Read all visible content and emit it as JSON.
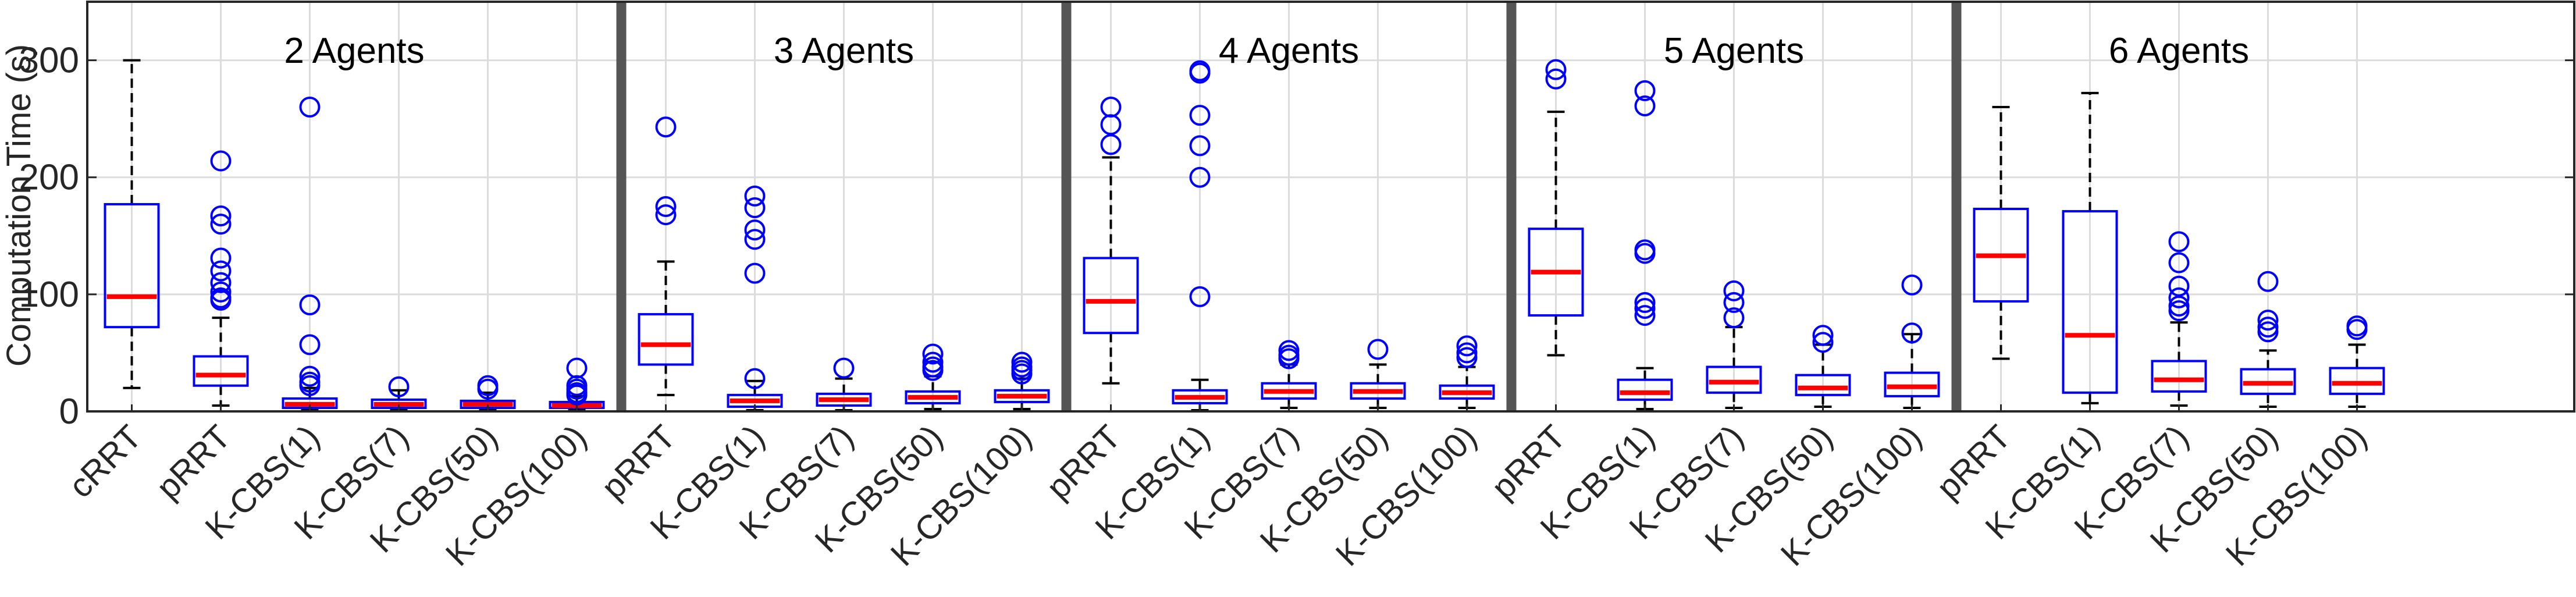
{
  "chart_data": {
    "type": "boxplot",
    "ylabel": "Computation Time (s)",
    "ylim": [
      0,
      350
    ],
    "yticks": [
      0,
      100,
      200,
      300
    ],
    "grid": true,
    "colors": {
      "box": "#0000ff",
      "median": "#ff0000",
      "whisker": "#000000",
      "outlier": "#0000ff",
      "axis": "#262626",
      "divider": "#555555"
    },
    "panels": [
      {
        "title": "2 Agents",
        "groups": [
          {
            "label": "cRRT",
            "q1": 72,
            "median": 98,
            "q3": 177,
            "wlo": 20,
            "whi": 300,
            "outliers": []
          },
          {
            "label": "pRRT",
            "q1": 22,
            "median": 31,
            "q3": 47,
            "wlo": 5,
            "whi": 80,
            "outliers": [
              214,
              167,
              160,
              131,
              120,
              110,
              102,
              97,
              95
            ]
          },
          {
            "label": "K-CBS(1)",
            "q1": 3,
            "median": 6,
            "q3": 11,
            "wlo": 1,
            "whi": 20,
            "outliers": [
              260,
              91,
              57,
              30,
              25,
              22
            ]
          },
          {
            "label": "K-CBS(7)",
            "q1": 3,
            "median": 6,
            "q3": 10,
            "wlo": 1,
            "whi": 18,
            "outliers": [
              21
            ]
          },
          {
            "label": "K-CBS(50)",
            "q1": 3,
            "median": 6,
            "q3": 9,
            "wlo": 1,
            "whi": 16,
            "outliers": [
              22,
              19
            ]
          },
          {
            "label": "K-CBS(100)",
            "q1": 3,
            "median": 5,
            "q3": 8,
            "wlo": 1,
            "whi": 13,
            "outliers": [
              37,
              22,
              19,
              16,
              14
            ]
          }
        ]
      },
      {
        "title": "3 Agents",
        "groups": [
          {
            "label": "pRRT",
            "q1": 40,
            "median": 57,
            "q3": 83,
            "wlo": 14,
            "whi": 128,
            "outliers": [
              243,
              175,
              168
            ]
          },
          {
            "label": "K-CBS(1)",
            "q1": 4,
            "median": 9,
            "q3": 14,
            "wlo": 1,
            "whi": 26,
            "outliers": [
              184,
              174,
              155,
              147,
              118,
              28
            ]
          },
          {
            "label": "K-CBS(7)",
            "q1": 5,
            "median": 10,
            "q3": 15,
            "wlo": 1,
            "whi": 28,
            "outliers": [
              37
            ]
          },
          {
            "label": "K-CBS(50)",
            "q1": 7,
            "median": 12,
            "q3": 17,
            "wlo": 2,
            "whi": 30,
            "outliers": [
              49,
              42,
              38,
              35
            ]
          },
          {
            "label": "K-CBS(100)",
            "q1": 8,
            "median": 13,
            "q3": 18,
            "wlo": 2,
            "whi": 28,
            "outliers": [
              42,
              38,
              35,
              32
            ]
          }
        ]
      },
      {
        "title": "4 Agents",
        "groups": [
          {
            "label": "pRRT",
            "q1": 67,
            "median": 94,
            "q3": 131,
            "wlo": 24,
            "whi": 217,
            "outliers": [
              260,
              245,
              228
            ]
          },
          {
            "label": "K-CBS(1)",
            "q1": 7,
            "median": 12,
            "q3": 18,
            "wlo": 1,
            "whi": 27,
            "outliers": [
              291,
              289,
              253,
              227,
              200,
              98
            ]
          },
          {
            "label": "K-CBS(7)",
            "q1": 11,
            "median": 17,
            "q3": 24,
            "wlo": 3,
            "whi": 40,
            "outliers": [
              52,
              48,
              45
            ]
          },
          {
            "label": "K-CBS(50)",
            "q1": 11,
            "median": 17,
            "q3": 24,
            "wlo": 3,
            "whi": 40,
            "outliers": [
              53
            ]
          },
          {
            "label": "K-CBS(100)",
            "q1": 11,
            "median": 16,
            "q3": 22,
            "wlo": 3,
            "whi": 38,
            "outliers": [
              56,
              50,
              46
            ]
          }
        ]
      },
      {
        "title": "5 Agents",
        "groups": [
          {
            "label": "pRRT",
            "q1": 82,
            "median": 119,
            "q3": 156,
            "wlo": 48,
            "whi": 256,
            "outliers": [
              292,
              284
            ]
          },
          {
            "label": "K-CBS(1)",
            "q1": 10,
            "median": 16,
            "q3": 27,
            "wlo": 2,
            "whi": 37,
            "outliers": [
              274,
              261,
              138,
              135,
              93,
              88,
              82
            ]
          },
          {
            "label": "K-CBS(7)",
            "q1": 16,
            "median": 25,
            "q3": 38,
            "wlo": 3,
            "whi": 72,
            "outliers": [
              103,
              93,
              80
            ]
          },
          {
            "label": "K-CBS(50)",
            "q1": 14,
            "median": 20,
            "q3": 31,
            "wlo": 4,
            "whi": 57,
            "outliers": [
              65,
              59
            ]
          },
          {
            "label": "K-CBS(100)",
            "q1": 13,
            "median": 21,
            "q3": 33,
            "wlo": 3,
            "whi": 66,
            "outliers": [
              108,
              67
            ]
          }
        ]
      },
      {
        "title": "6 Agents",
        "groups": [
          {
            "label": "pRRT",
            "q1": 94,
            "median": 133,
            "q3": 173,
            "wlo": 45,
            "whi": 260,
            "outliers": []
          },
          {
            "label": "K-CBS(1)",
            "q1": 16,
            "median": 65,
            "q3": 171,
            "wlo": 7,
            "whi": 272,
            "outliers": []
          },
          {
            "label": "K-CBS(7)",
            "q1": 17,
            "median": 27,
            "q3": 43,
            "wlo": 5,
            "whi": 76,
            "outliers": [
              145,
              127,
              107,
              97,
              90,
              86
            ]
          },
          {
            "label": "K-CBS(50)",
            "q1": 15,
            "median": 24,
            "q3": 36,
            "wlo": 4,
            "whi": 52,
            "outliers": [
              111,
              78,
              72,
              68
            ]
          },
          {
            "label": "K-CBS(100)",
            "q1": 15,
            "median": 24,
            "q3": 37,
            "wlo": 4,
            "whi": 57,
            "outliers": [
              73,
              70
            ]
          }
        ]
      }
    ]
  }
}
